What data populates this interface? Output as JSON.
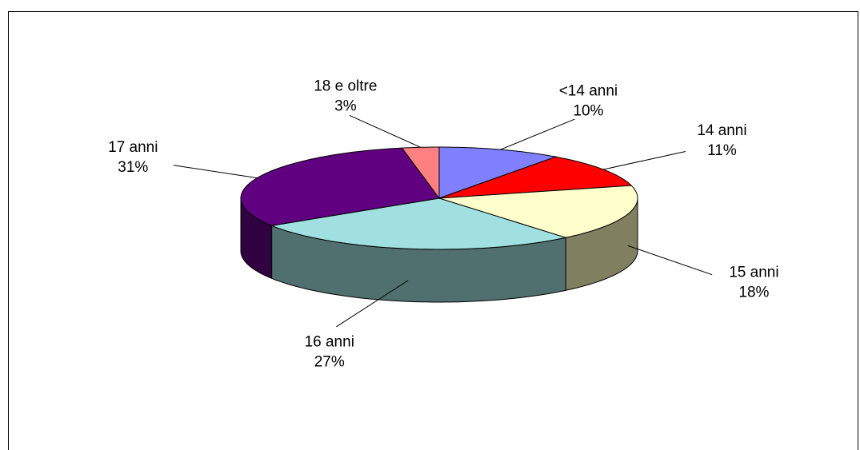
{
  "chart_data": {
    "type": "pie3d",
    "categories": [
      "<14 anni",
      "14 anni",
      "15 anni",
      "16 anni",
      "17 anni",
      "18 e oltre"
    ],
    "values": [
      10,
      11,
      18,
      27,
      31,
      3
    ],
    "value_labels": [
      "10%",
      "11%",
      "18%",
      "27%",
      "31%",
      "3%"
    ],
    "colors": [
      "#8080ff",
      "#ff0000",
      "#ffffcc",
      "#a0e0e0",
      "#600080",
      "#ff8080"
    ],
    "side_colors": [
      "#404080",
      "#800000",
      "#808060",
      "#507070",
      "#300040",
      "#804040"
    ]
  }
}
